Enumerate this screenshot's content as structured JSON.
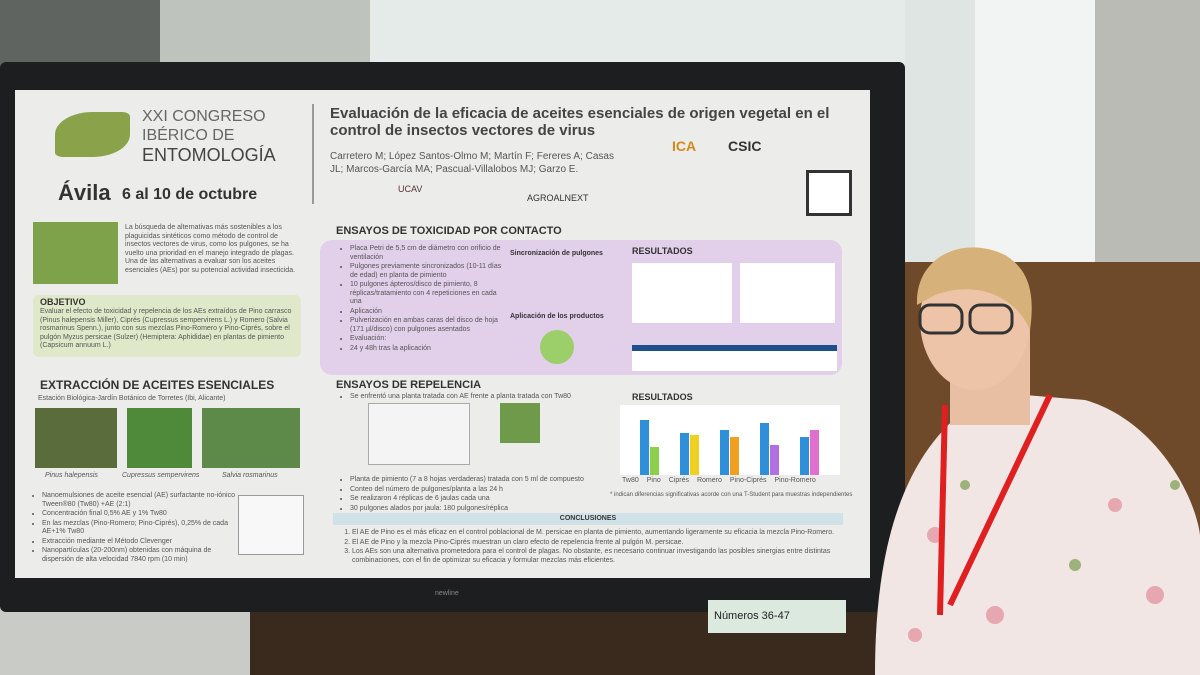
{
  "poster": {
    "congress": {
      "line1": "XXI CONGRESO",
      "line2": "IBÉRICO DE",
      "line3": "ENTOMOLOGÍA",
      "city": "Ávila",
      "dates": "6 al 10 de octubre"
    },
    "title": "Evaluación de la eficacia de aceites esenciales de origen vegetal en el control de insectos vectores de virus",
    "authors": "Carretero M; López Santos-Olmo M; Martín F; Fereres A; Casas JL; Marcos-García MA; Pascual-Villalobos MJ; Garzo E.",
    "logos": [
      "ICA",
      "CSIC",
      "UCAV",
      "AGROALNEXT"
    ],
    "intro": "La búsqueda de alternativas más sostenibles a los plaguicidas sintéticos como método de control de insectos vectores de virus, como los pulgones, se ha vuelto una prioridad en el manejo integrado de plagas. Una de las alternativas a evaluar son los aceites esenciales (AEs) por su potencial actividad insecticida.",
    "objective": {
      "heading": "OBJETIVO",
      "text": "Evaluar el efecto de toxicidad y repelencia de los AEs extraídos de Pino carrasco (Pinus halepensis Miller), Ciprés (Cupressus sempervirens L.) y Romero (Salvia rosmarinus Spenn.), junto con sus mezclas Pino-Romero y Pino-Ciprés, sobre el pulgón Myzus persicae (Sulzer) (Hemiptera: Aphididae) en plantas de pimiento (Capsicum annuum L.)"
    },
    "extraction": {
      "heading": "EXTRACCIÓN DE ACEITES ESENCIALES",
      "location": "Estación Biológica-Jardín Botánico de Torretes (Ibi, Alicante)",
      "species": [
        "Pinus halepensis",
        "Cupressus sempervirens",
        "Salvia rosmarinus"
      ],
      "bullets": [
        "Nanoemulsiones de aceite esencial (AE) surfactante no-iónico Tween®80 (Tw80) +AE (2:1)",
        "Concentración final 0,5% AE y 1% Tw80",
        "En las mezclas (Pino-Romero; Pino-Ciprés), 0,25% de cada AE+1% Tw80",
        "Extracción mediante el Método Clevenger",
        "Nanopartículas (20-200nm) obtenidas con máquina de dispersión de alta velocidad 7840 rpm (10 min)"
      ]
    },
    "toxicity": {
      "heading": "ENSAYOS DE TOXICIDAD POR CONTACTO",
      "bullets": [
        "Placa Petri de 5,5 cm de diámetro con orificio de ventilación",
        "Pulgones previamente sincronizados (10-11 días de edad) en planta de pimiento",
        "10 pulgones ápteros/disco de pimiento, 8 réplicas/tratamiento con 4 repeticiones en cada una",
        "Aplicación",
        "Pulverización en ambas caras del disco de hoja (171 µl/disco) con pulgones asentados",
        "Evaluación:",
        "24 y 48h tras la aplicación"
      ],
      "sync": "Sincronización de pulgones",
      "application": "Aplicación de los productos",
      "results": "RESULTADOS"
    },
    "repellence": {
      "heading": "ENSAYOS DE REPELENCIA",
      "bullets_top": [
        "Se enfrentó una planta tratada con AE frente a planta tratada con Tw80"
      ],
      "bullets_bottom": [
        "Planta de pimiento (7 a 8 hojas verdaderas) tratada con 5 ml de compuesto",
        "Conteo del número de pulgones/planta a las 24 h",
        "Se realizaron 4 réplicas de 6 jaulas cada una",
        "30 pulgones alados por jaula: 180 pulgones/réplica"
      ],
      "results": "RESULTADOS",
      "legend": [
        "Tw80",
        "Pino",
        "Ciprés",
        "Romero",
        "Pino-Ciprés",
        "Pino-Romero"
      ],
      "note": "* indican diferencias significativas acorde con una T-Student para muestras independientes"
    },
    "conclusions": {
      "heading": "CONCLUSIONES",
      "items": [
        "El AE de Pino es el más eficaz en el control poblacional de M. persicae en planta de pimiento, aumentando ligeramente su eficacia la mezcla Pino-Romero.",
        "El AE de Pino y la mezcla Pino-Ciprés muestran un claro efecto de repelencia frente al pulgón M. persicae.",
        "Los AEs son una alternativa prometedora para el control de plagas. No obstante, es necesario continuar investigando las posibles sinergias entre distintas combinaciones, con el fin de optimizar su eficacia y formular mezclas más eficientes."
      ]
    }
  },
  "screen_brand": "newline",
  "sign": "Números 36-47"
}
